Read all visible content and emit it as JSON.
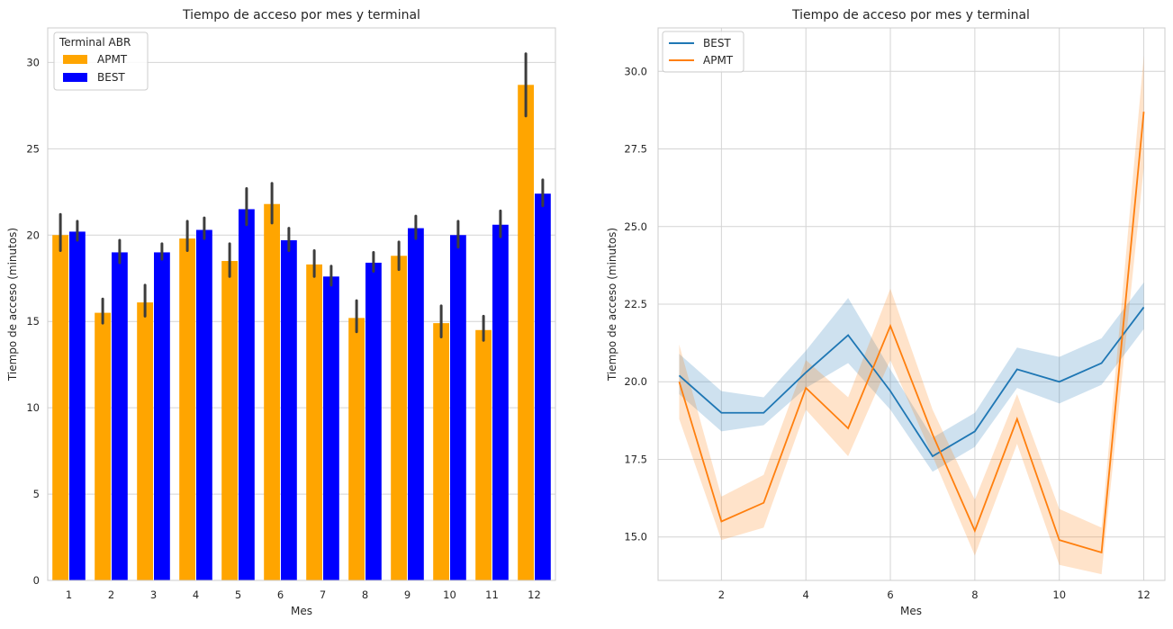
{
  "chart_data": [
    {
      "type": "bar",
      "title": "Tiempo de acceso por mes y terminal",
      "xlabel": "Mes",
      "ylabel": "Tiempo de acceso (minutos)",
      "categories": [
        "1",
        "2",
        "3",
        "4",
        "5",
        "6",
        "7",
        "8",
        "9",
        "10",
        "11",
        "12"
      ],
      "ylim": [
        0,
        32
      ],
      "yticks": [
        0,
        5,
        10,
        15,
        20,
        25,
        30
      ],
      "grid": true,
      "legend": {
        "title": "Terminal ABR",
        "placement": "top-left"
      },
      "series": [
        {
          "name": "APMT",
          "color": "#FFA500",
          "values": [
            20.0,
            15.5,
            16.1,
            19.8,
            18.5,
            21.8,
            18.3,
            15.2,
            18.8,
            14.9,
            14.5,
            28.7
          ],
          "ci_low": [
            19.1,
            14.9,
            15.3,
            19.1,
            17.6,
            20.7,
            17.6,
            14.4,
            18.0,
            14.1,
            13.9,
            26.9
          ],
          "ci_high": [
            21.2,
            16.3,
            17.1,
            20.8,
            19.5,
            23.0,
            19.1,
            16.2,
            19.6,
            15.9,
            15.3,
            30.5
          ]
        },
        {
          "name": "BEST",
          "color": "#0000FF",
          "values": [
            20.2,
            19.0,
            19.0,
            20.3,
            21.5,
            19.7,
            17.6,
            18.4,
            20.4,
            20.0,
            20.6,
            22.4
          ],
          "ci_low": [
            19.7,
            18.4,
            18.6,
            19.8,
            20.6,
            19.1,
            17.1,
            17.9,
            19.8,
            19.3,
            19.9,
            21.7
          ],
          "ci_high": [
            20.8,
            19.7,
            19.5,
            21.0,
            22.7,
            20.4,
            18.2,
            19.0,
            21.1,
            20.8,
            21.4,
            23.2
          ]
        }
      ]
    },
    {
      "type": "line",
      "title": "Tiempo de acceso por mes y terminal",
      "xlabel": "Mes",
      "ylabel": "Tiempo de acceso (minutos)",
      "x": [
        1,
        2,
        3,
        4,
        5,
        6,
        7,
        8,
        9,
        10,
        11,
        12
      ],
      "xlim": [
        0.5,
        12.5
      ],
      "xticks": [
        2,
        4,
        6,
        8,
        10,
        12
      ],
      "ylim": [
        13.6,
        31.4
      ],
      "yticks": [
        "15.0",
        "17.5",
        "20.0",
        "22.5",
        "25.0",
        "27.5",
        "30.0"
      ],
      "grid": true,
      "legend": {
        "placement": "top-left"
      },
      "series": [
        {
          "name": "BEST",
          "color": "#1f77b4",
          "values": [
            20.2,
            19.0,
            19.0,
            20.3,
            21.5,
            19.7,
            17.6,
            18.4,
            20.4,
            20.0,
            20.6,
            22.4
          ],
          "ci_low": [
            19.6,
            18.4,
            18.6,
            19.8,
            20.6,
            19.1,
            17.1,
            17.9,
            19.8,
            19.3,
            19.9,
            21.7
          ],
          "ci_high": [
            20.9,
            19.7,
            19.5,
            21.0,
            22.7,
            20.4,
            18.2,
            19.0,
            21.1,
            20.8,
            21.4,
            23.2
          ]
        },
        {
          "name": "APMT",
          "color": "#ff7f0e",
          "values": [
            20.0,
            15.5,
            16.1,
            19.8,
            18.5,
            21.8,
            18.3,
            15.2,
            18.8,
            14.9,
            14.5,
            28.7
          ],
          "ci_low": [
            18.8,
            14.9,
            15.3,
            19.1,
            17.6,
            20.7,
            17.6,
            14.4,
            18.0,
            14.1,
            13.8,
            26.9
          ],
          "ci_high": [
            21.2,
            16.3,
            17.0,
            20.7,
            19.5,
            23.0,
            19.1,
            16.2,
            19.6,
            15.9,
            15.3,
            30.5
          ]
        }
      ]
    }
  ]
}
